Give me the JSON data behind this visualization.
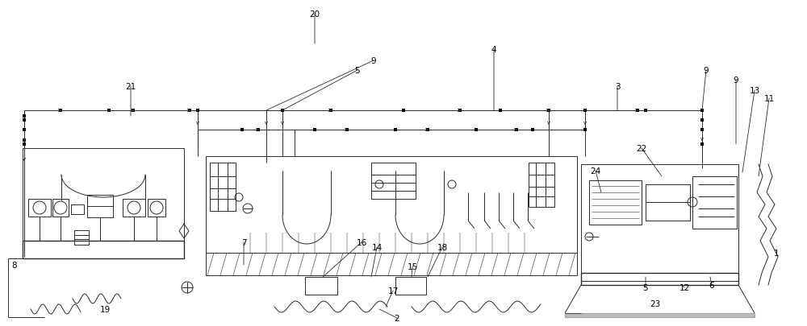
{
  "bg_color": "#ffffff",
  "line_color": "#2a2a2a",
  "fig_width": 10.0,
  "fig_height": 4.06,
  "dpi": 100
}
